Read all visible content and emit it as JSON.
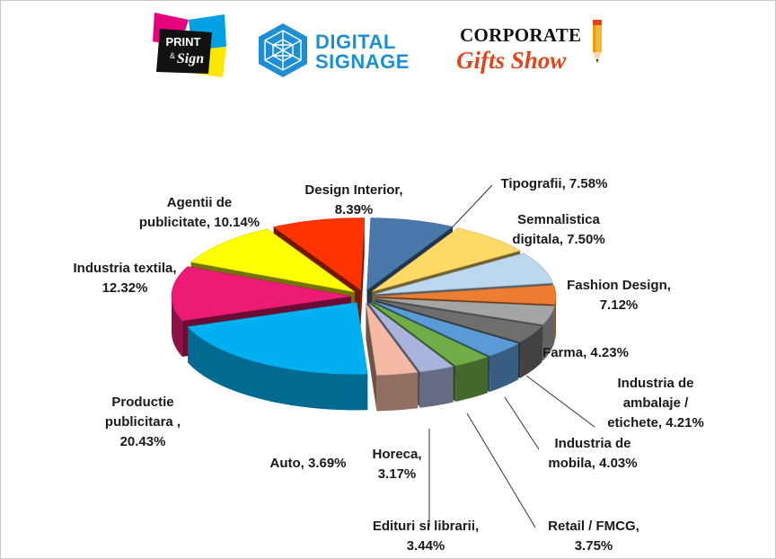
{
  "logos": {
    "print_sign": {
      "line1": "PRINT",
      "line2": "&",
      "line3": "Sign"
    },
    "digital_signage": {
      "line1": "DIGITAL",
      "line2": "SIGNAGE"
    },
    "corporate_gifts": {
      "line1": "CORPORATE",
      "line2": "Gifts Show"
    }
  },
  "chart_data": {
    "type": "pie",
    "title": "",
    "unit": "%",
    "slices": [
      {
        "label": "Tipografii, 7.58%",
        "value": 7.58,
        "color": "#4a78ab"
      },
      {
        "label": "Semnalistica digitala, 7.50%",
        "value": 7.5,
        "color": "#ffd966"
      },
      {
        "label": "Fashion Design, 7.12%",
        "value": 7.12,
        "color": "#bdd7ee"
      },
      {
        "label": "Farma, 4.23%",
        "value": 4.23,
        "color": "#ed7d31"
      },
      {
        "label": "Industria de ambalaje / etichete, 4.21%",
        "value": 4.21,
        "color": "#a5a5a5"
      },
      {
        "label": "Industria de mobila, 4.03%",
        "value": 4.03,
        "color": "#6e6e6e"
      },
      {
        "label": "Retail / FMCG, 3.75%",
        "value": 3.75,
        "color": "#5b9bd5"
      },
      {
        "label": "Edituri si librarii, 3.44%",
        "value": 3.44,
        "color": "#70ad47"
      },
      {
        "label": "Horeca, 3.17%",
        "value": 3.17,
        "color": "#aab3dc"
      },
      {
        "label": "Auto, 3.69%",
        "value": 3.69,
        "color": "#f4b9a2"
      },
      {
        "label": "Productie publicitara , 20.43%",
        "value": 20.43,
        "color": "#00b0f0"
      },
      {
        "label": "Industria textila, 12.32%",
        "value": 12.32,
        "color": "#ec1b73"
      },
      {
        "label": "Agentii de publicitate, 10.14%",
        "value": 10.14,
        "color": "#ffff00"
      },
      {
        "label": "Design Interior, 8.39%",
        "value": 8.39,
        "color": "#ff3300"
      }
    ],
    "labels": [
      {
        "lines": [
          "Tipografii, 7.58%"
        ]
      },
      {
        "lines": [
          "Semnalistica",
          "digitala, 7.50%"
        ]
      },
      {
        "lines": [
          "Fashion Design,",
          "7.12%"
        ]
      },
      {
        "lines": [
          "Farma, 4.23%"
        ]
      },
      {
        "lines": [
          "Industria de",
          "ambalaje /",
          "etichete, 4.21%"
        ]
      },
      {
        "lines": [
          "Industria de",
          "mobila, 4.03%"
        ]
      },
      {
        "lines": [
          "Retail / FMCG,",
          "3.75%"
        ]
      },
      {
        "lines": [
          "Edituri si librarii,",
          "3.44%"
        ]
      },
      {
        "lines": [
          "Horeca,",
          "3.17%"
        ]
      },
      {
        "lines": [
          "Auto, 3.69%"
        ]
      },
      {
        "lines": [
          "Productie",
          "publicitara ,",
          "20.43%"
        ]
      },
      {
        "lines": [
          "Industria textila,",
          "12.32%"
        ]
      },
      {
        "lines": [
          "Agentii de",
          "publicitate, 10.14%"
        ]
      },
      {
        "lines": [
          "Design Interior,",
          "8.39%"
        ]
      }
    ]
  }
}
